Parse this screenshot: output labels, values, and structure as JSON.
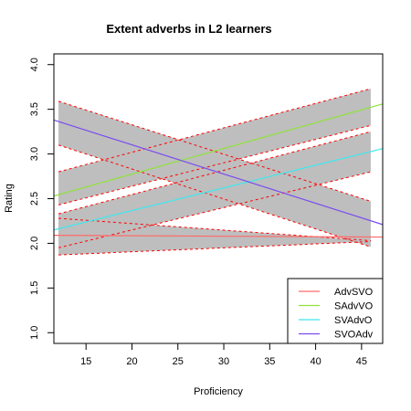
{
  "chart_data": {
    "type": "line",
    "title": "Extent adverbs in L2 learners",
    "xlabel": "Proficiency",
    "ylabel": "Rating",
    "xlim": [
      11.5,
      47.3
    ],
    "ylim": [
      0.88,
      4.12
    ],
    "xticks": [
      15,
      20,
      25,
      30,
      35,
      40,
      45
    ],
    "yticks": [
      1.0,
      1.5,
      2.0,
      2.5,
      3.0,
      3.5,
      4.0
    ],
    "xtick_labels": [
      "15",
      "20",
      "25",
      "30",
      "35",
      "40",
      "45"
    ],
    "ytick_labels": [
      "1.0",
      "1.5",
      "2.0",
      "2.5",
      "3.0",
      "3.5",
      "4.0"
    ],
    "band_x_range": [
      12,
      46
    ],
    "band_color": "#bebebe",
    "band_edge_color": "#ff0000",
    "legend_position": "bottom-right",
    "series": [
      {
        "name": "AdvSVO",
        "color": "#ff6a6a",
        "line_x": [
          11.5,
          47.3
        ],
        "line_y": [
          2.09,
          2.07
        ],
        "band_lower": [
          1.87,
          2.02
        ],
        "band_upper": [
          2.28,
          2.03
        ]
      },
      {
        "name": "SAdvVO",
        "color": "#8fe33a",
        "line_x": [
          11.5,
          47.3
        ],
        "line_y": [
          2.53,
          3.56
        ],
        "band_lower": [
          2.43,
          3.32
        ],
        "band_upper": [
          2.8,
          3.73
        ]
      },
      {
        "name": "SVAdvO",
        "color": "#3fe8ee",
        "line_x": [
          11.5,
          47.3
        ],
        "line_y": [
          2.15,
          3.06
        ],
        "band_lower": [
          1.95,
          2.8
        ],
        "band_upper": [
          2.33,
          3.25
        ]
      },
      {
        "name": "SVOAdv",
        "color": "#7a4cee",
        "line_x": [
          11.5,
          47.3
        ],
        "line_y": [
          3.38,
          2.21
        ],
        "band_lower": [
          3.1,
          1.96
        ],
        "band_upper": [
          3.59,
          2.47
        ]
      }
    ]
  }
}
